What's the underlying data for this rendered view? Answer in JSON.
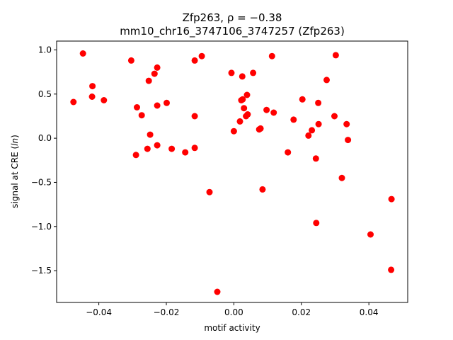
{
  "chart_data": {
    "type": "scatter",
    "title_line1": "Zfp263, ρ = −0.38",
    "title_line2": "mm10_chr16_3747106_3747257 (Zfp263)",
    "xlabel": "motif activity",
    "ylabel": "signal at CRE (ln)",
    "xlim": [
      -0.0525,
      0.0515
    ],
    "ylim": [
      -1.86,
      1.1
    ],
    "xticks": [
      -0.04,
      -0.02,
      0.0,
      0.02,
      0.04
    ],
    "xtick_labels": [
      "−0.04",
      "−0.02",
      "0.00",
      "0.02",
      "0.04"
    ],
    "yticks": [
      -1.5,
      -1.0,
      -0.5,
      0.0,
      0.5,
      1.0
    ],
    "ytick_labels": [
      "−1.5",
      "−1.0",
      "−0.5",
      "0.0",
      "0.5",
      "1.0"
    ],
    "grid": false,
    "point_color": "#ff0000",
    "points": [
      {
        "x": -0.0475,
        "y": 0.41
      },
      {
        "x": -0.0447,
        "y": 0.96
      },
      {
        "x": -0.0419,
        "y": 0.59
      },
      {
        "x": -0.042,
        "y": 0.47
      },
      {
        "x": -0.0385,
        "y": 0.43
      },
      {
        "x": -0.0304,
        "y": 0.88
      },
      {
        "x": -0.0287,
        "y": 0.35
      },
      {
        "x": -0.029,
        "y": -0.19
      },
      {
        "x": -0.0273,
        "y": 0.26
      },
      {
        "x": -0.0256,
        "y": -0.12
      },
      {
        "x": -0.0252,
        "y": 0.65
      },
      {
        "x": -0.0248,
        "y": 0.04
      },
      {
        "x": -0.0235,
        "y": 0.73
      },
      {
        "x": -0.0227,
        "y": 0.8
      },
      {
        "x": -0.0227,
        "y": 0.37
      },
      {
        "x": -0.0227,
        "y": -0.08
      },
      {
        "x": -0.0199,
        "y": 0.4
      },
      {
        "x": -0.0184,
        "y": -0.12
      },
      {
        "x": -0.0144,
        "y": -0.16
      },
      {
        "x": -0.0116,
        "y": 0.88
      },
      {
        "x": -0.0116,
        "y": 0.25
      },
      {
        "x": -0.0116,
        "y": -0.11
      },
      {
        "x": -0.0095,
        "y": 0.93
      },
      {
        "x": -0.0072,
        "y": -0.61
      },
      {
        "x": -0.0049,
        "y": -1.74
      },
      {
        "x": -0.0007,
        "y": 0.74
      },
      {
        "x": 0.0,
        "y": 0.08
      },
      {
        "x": 0.0018,
        "y": 0.19
      },
      {
        "x": 0.0022,
        "y": 0.43
      },
      {
        "x": 0.0025,
        "y": 0.7
      },
      {
        "x": 0.0026,
        "y": 0.44
      },
      {
        "x": 0.003,
        "y": 0.34
      },
      {
        "x": 0.0036,
        "y": 0.25
      },
      {
        "x": 0.0039,
        "y": 0.49
      },
      {
        "x": 0.0041,
        "y": 0.27
      },
      {
        "x": 0.0057,
        "y": 0.74
      },
      {
        "x": 0.0075,
        "y": 0.1
      },
      {
        "x": 0.0079,
        "y": 0.11
      },
      {
        "x": 0.0085,
        "y": -0.58
      },
      {
        "x": 0.0097,
        "y": 0.32
      },
      {
        "x": 0.0113,
        "y": 0.93
      },
      {
        "x": 0.0118,
        "y": 0.29
      },
      {
        "x": 0.016,
        "y": -0.16
      },
      {
        "x": 0.0177,
        "y": 0.21
      },
      {
        "x": 0.0203,
        "y": 0.44
      },
      {
        "x": 0.0221,
        "y": 0.03
      },
      {
        "x": 0.0231,
        "y": 0.09
      },
      {
        "x": 0.0243,
        "y": -0.23
      },
      {
        "x": 0.0244,
        "y": -0.96
      },
      {
        "x": 0.025,
        "y": 0.4
      },
      {
        "x": 0.0251,
        "y": 0.16
      },
      {
        "x": 0.0275,
        "y": 0.66
      },
      {
        "x": 0.0298,
        "y": 0.25
      },
      {
        "x": 0.0302,
        "y": 0.94
      },
      {
        "x": 0.032,
        "y": -0.45
      },
      {
        "x": 0.0334,
        "y": 0.16
      },
      {
        "x": 0.0338,
        "y": -0.02
      },
      {
        "x": 0.0405,
        "y": -1.09
      },
      {
        "x": 0.0466,
        "y": -1.49
      },
      {
        "x": 0.0467,
        "y": -0.69
      }
    ]
  }
}
